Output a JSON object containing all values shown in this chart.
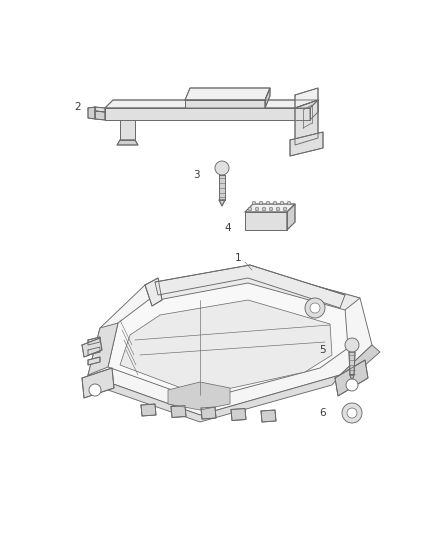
{
  "background_color": "#ffffff",
  "line_color": "#6b6b6b",
  "label_color": "#3a3a3a",
  "fig_width": 4.38,
  "fig_height": 5.33,
  "dpi": 100,
  "label_fontsize": 7.5,
  "lw": 0.65
}
